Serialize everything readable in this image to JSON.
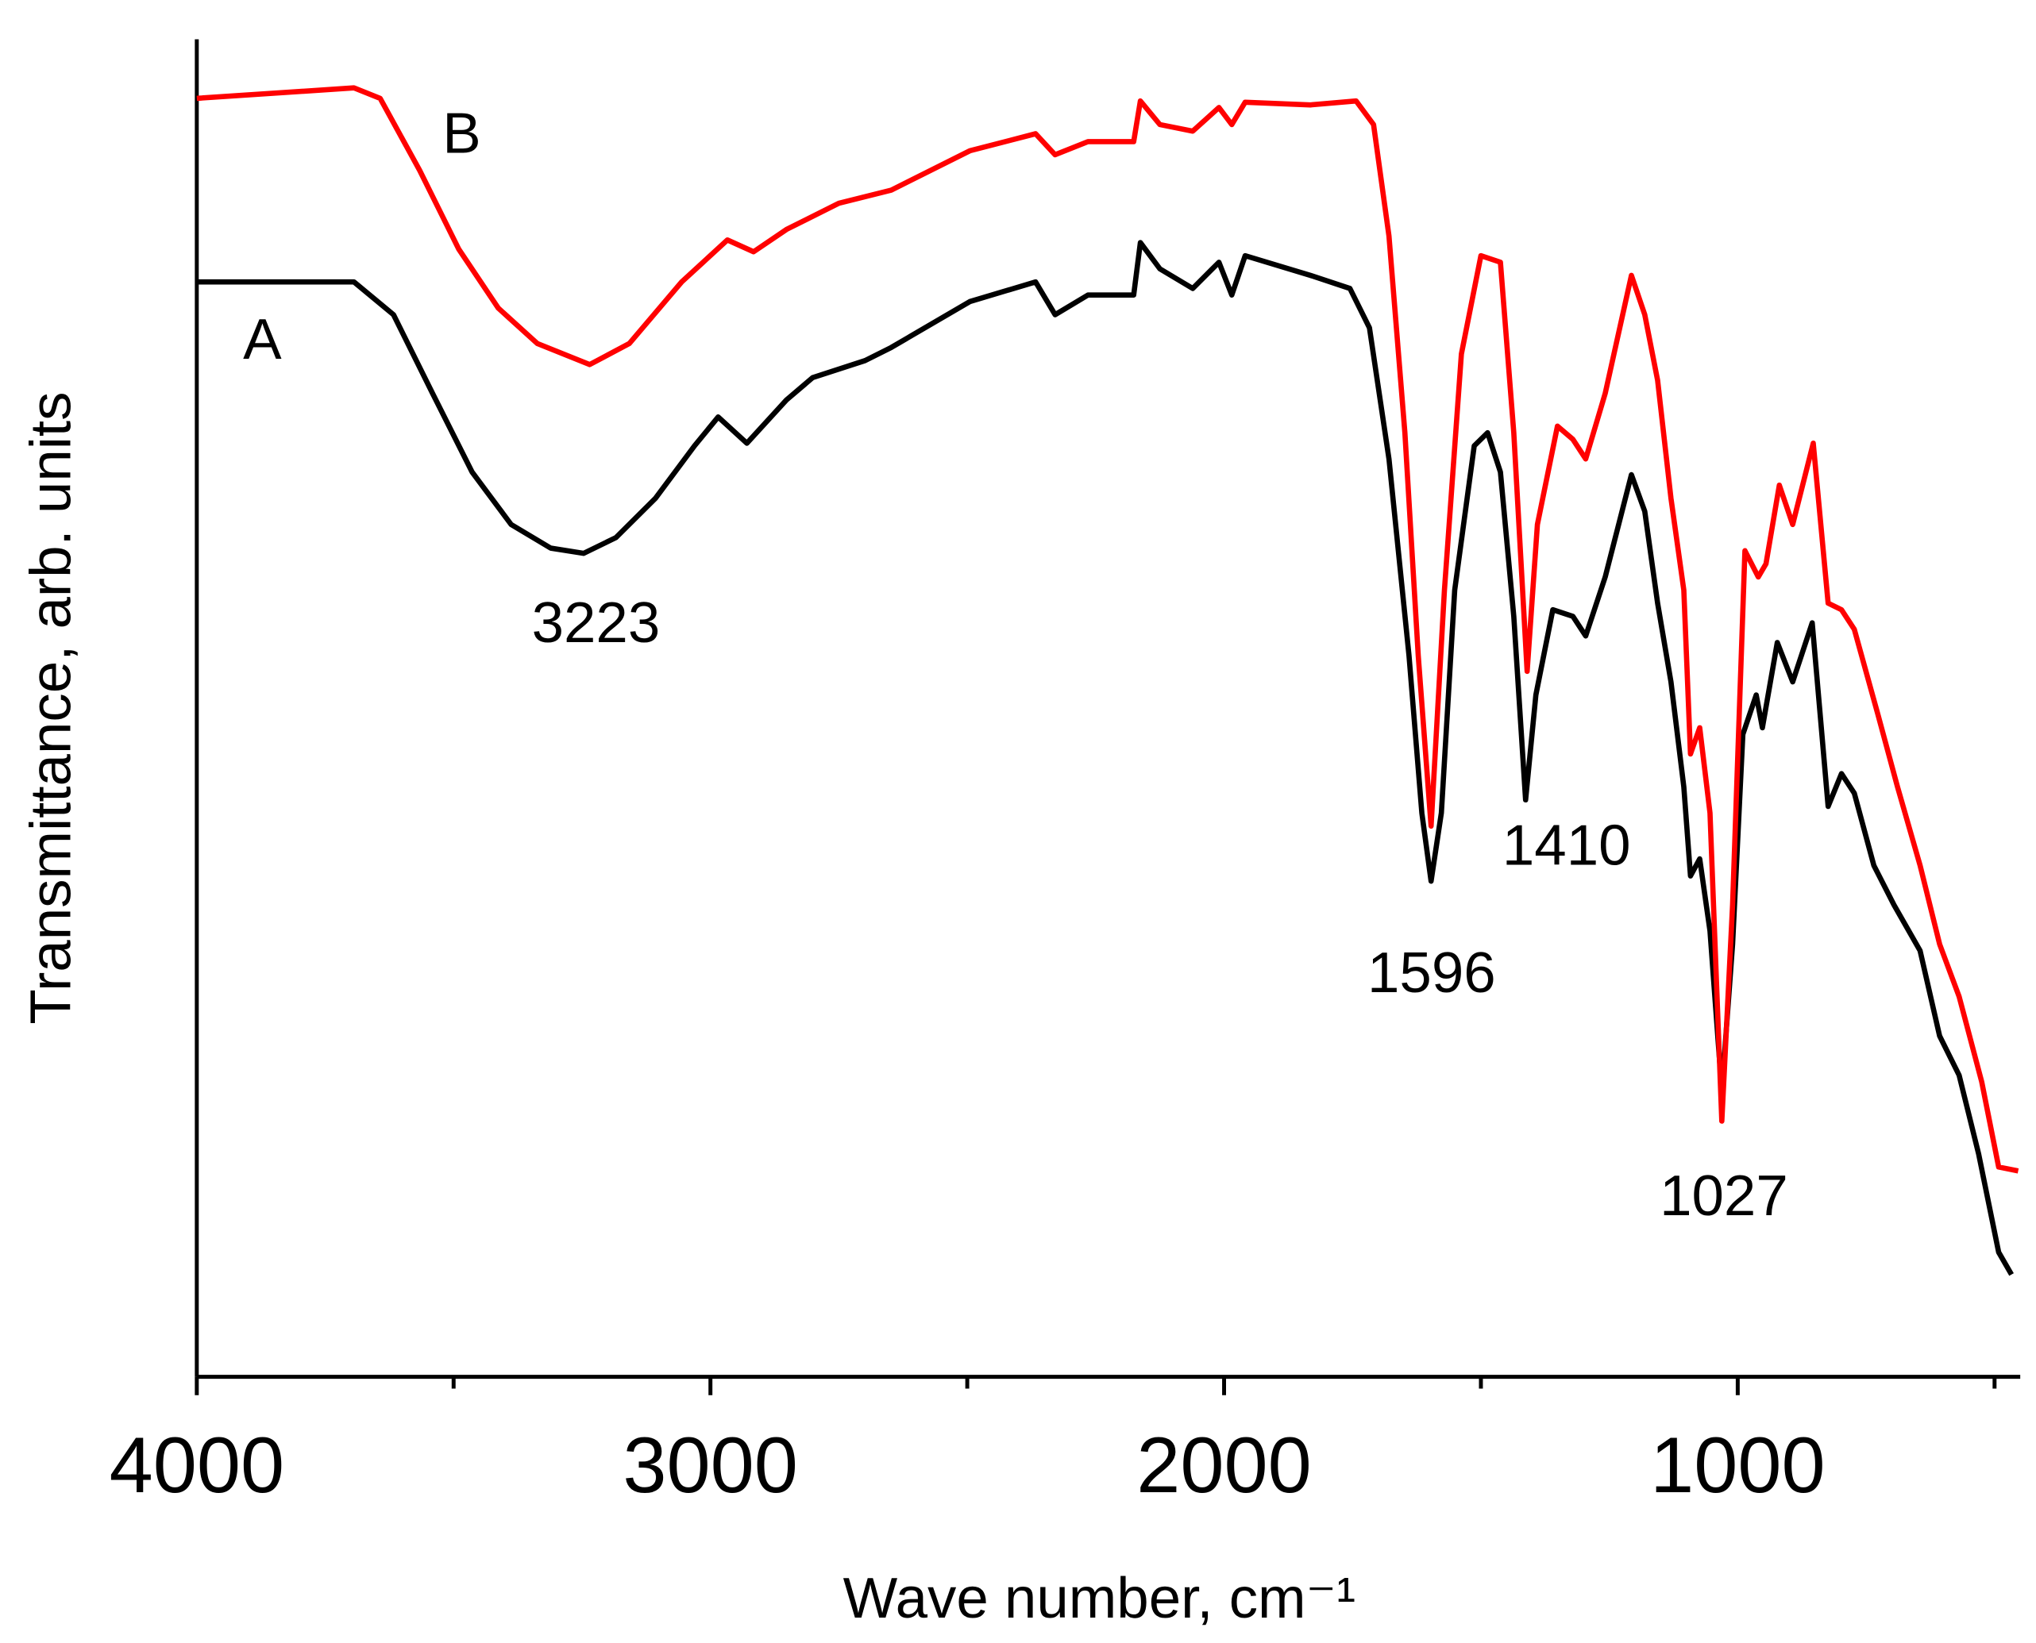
{
  "chart_data": {
    "type": "line",
    "x_label": "Wave number, cm⁻¹",
    "y_label": "Transmittance, arb. units",
    "xlim": [
      4000,
      450
    ],
    "ylim": [
      0,
      102
    ],
    "xticks": [
      4000,
      3000,
      2000,
      1000
    ],
    "xminorticks": [
      3500,
      2500,
      1500,
      500
    ],
    "annotations": [
      3223,
      1596,
      1410,
      1027
    ],
    "series": [
      {
        "name": "A",
        "color": "#000000",
        "x": [
          4000,
          3694,
          3617,
          3541,
          3464,
          3388,
          3311,
          3247,
          3184,
          3107,
          3031,
          2985,
          2929,
          2852,
          2801,
          2699,
          2648,
          2495,
          2367,
          2329,
          2265,
          2176,
          2163,
          2125,
          2061,
          2010,
          1985,
          1959,
          1832,
          1755,
          1717,
          1679,
          1640,
          1615,
          1597,
          1577,
          1551,
          1513,
          1487,
          1462,
          1436,
          1413,
          1393,
          1360,
          1321,
          1296,
          1258,
          1207,
          1181,
          1156,
          1130,
          1105,
          1092,
          1074,
          1054,
          1031,
          1010,
          990,
          964,
          952,
          923,
          893,
          855,
          824,
          798,
          773,
          735,
          696,
          645,
          607,
          569,
          531,
          492,
          467
        ],
        "values": [
          83.5,
          83.5,
          81.0,
          75.0,
          69.0,
          65.0,
          63.2,
          62.8,
          64.0,
          67.0,
          71.0,
          73.2,
          71.2,
          74.5,
          76.2,
          77.5,
          78.5,
          82.0,
          83.5,
          81.0,
          82.5,
          82.5,
          86.5,
          84.5,
          83.0,
          85.0,
          82.5,
          85.5,
          84.0,
          83.0,
          80.0,
          70.0,
          55.0,
          43.0,
          37.8,
          43.0,
          60.0,
          71.0,
          72.0,
          69.0,
          58.0,
          44.0,
          52.0,
          58.5,
          58.0,
          56.5,
          61.0,
          68.8,
          66.0,
          59.0,
          53.0,
          45.0,
          38.2,
          39.5,
          34.0,
          21.8,
          33.0,
          49.0,
          52.0,
          49.5,
          56.0,
          53.0,
          57.5,
          43.5,
          46.0,
          44.5,
          39.0,
          36.0,
          32.5,
          26.0,
          23.0,
          17.0,
          9.5,
          7.8
        ]
      },
      {
        "name": "B",
        "color": "#ff0000",
        "x": [
          4000,
          3694,
          3643,
          3566,
          3490,
          3413,
          3337,
          3235,
          3158,
          3056,
          2967,
          2916,
          2852,
          2750,
          2648,
          2495,
          2367,
          2329,
          2265,
          2176,
          2163,
          2125,
          2061,
          2010,
          1985,
          1959,
          1832,
          1743,
          1709,
          1679,
          1648,
          1622,
          1597,
          1571,
          1538,
          1500,
          1462,
          1436,
          1410,
          1390,
          1351,
          1321,
          1296,
          1258,
          1207,
          1181,
          1156,
          1130,
          1105,
          1092,
          1074,
          1054,
          1031,
          1010,
          986,
          960,
          945,
          919,
          893,
          853,
          824,
          798,
          773,
          727,
          689,
          645,
          607,
          569,
          525,
          492,
          454
        ],
        "values": [
          97.5,
          98.3,
          97.5,
          92.0,
          86.0,
          81.5,
          78.8,
          77.2,
          78.8,
          83.5,
          86.7,
          85.8,
          87.5,
          89.5,
          90.5,
          93.5,
          94.8,
          93.2,
          94.2,
          94.2,
          97.3,
          95.5,
          95.0,
          96.8,
          95.5,
          97.2,
          97.0,
          97.3,
          95.5,
          87.0,
          72.0,
          55.0,
          42.0,
          60.0,
          78.0,
          85.5,
          85.0,
          72.0,
          53.8,
          65.0,
          72.5,
          71.5,
          70.0,
          75.0,
          84.0,
          81.0,
          76.0,
          67.0,
          60.0,
          47.5,
          49.5,
          43.0,
          19.5,
          36.0,
          63.0,
          61.0,
          62.0,
          68.0,
          65.0,
          71.2,
          59.0,
          58.5,
          57.0,
          50.5,
          45.0,
          39.0,
          33.0,
          29.0,
          22.5,
          16.0,
          15.7
        ]
      }
    ]
  }
}
